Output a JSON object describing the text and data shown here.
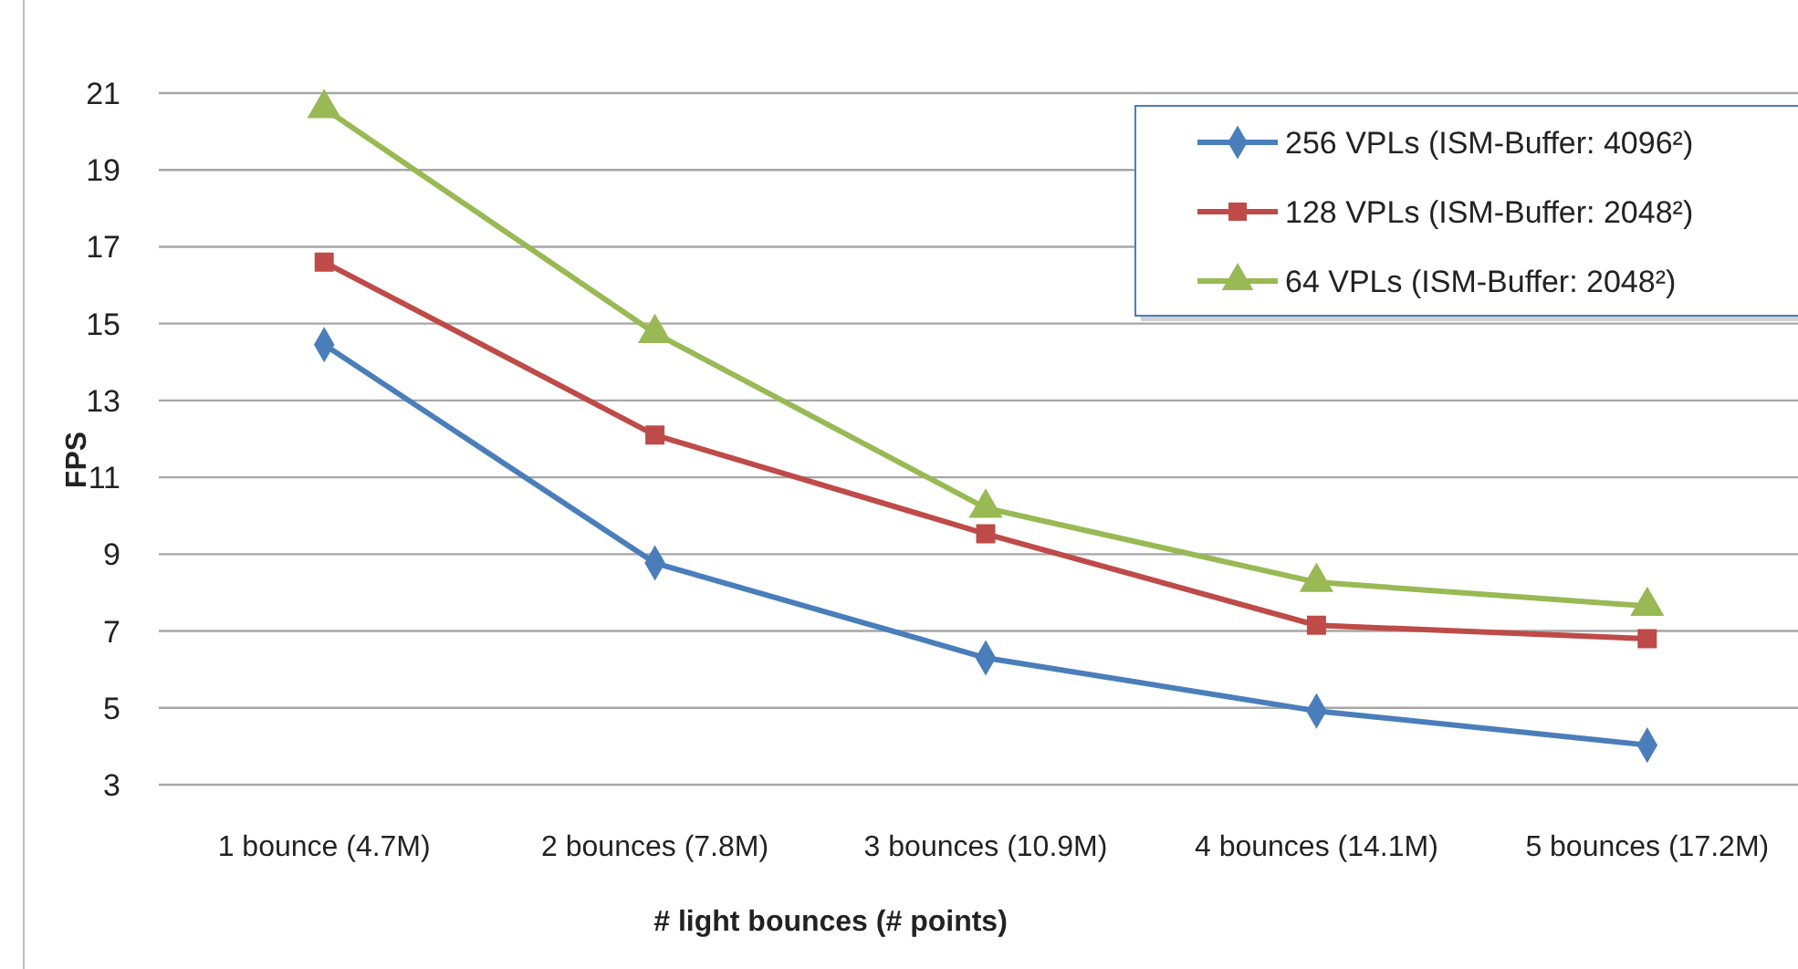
{
  "chart_data": {
    "type": "line",
    "xlabel": "# light bounces (# points)",
    "ylabel": "FPS",
    "categories": [
      "1 bounce (4.7M)",
      "2 bounces (7.8M)",
      "3 bounces (10.9M)",
      "4 bounces (14.1M)",
      "5 bounces (17.2M)"
    ],
    "series": [
      {
        "name": "256 VPLs (ISM-Buffer: 4096²)",
        "color": "#4a7ebb",
        "marker": "diamond",
        "values": [
          14.45,
          8.77,
          6.3,
          4.92,
          4.03
        ]
      },
      {
        "name": "128 VPLs (ISM-Buffer: 2048²)",
        "color": "#be4b48",
        "marker": "square",
        "values": [
          16.6,
          12.1,
          9.53,
          7.15,
          6.8
        ]
      },
      {
        "name": "64 VPLs (ISM-Buffer: 2048²)",
        "color": "#98b954",
        "marker": "triangle",
        "values": [
          20.6,
          14.75,
          10.2,
          8.27,
          7.65
        ]
      }
    ],
    "ylim": [
      3,
      21
    ],
    "yticks": [
      3,
      5,
      7,
      9,
      11,
      13,
      15,
      17,
      19,
      21
    ],
    "grid": "y",
    "legend": "top right"
  }
}
